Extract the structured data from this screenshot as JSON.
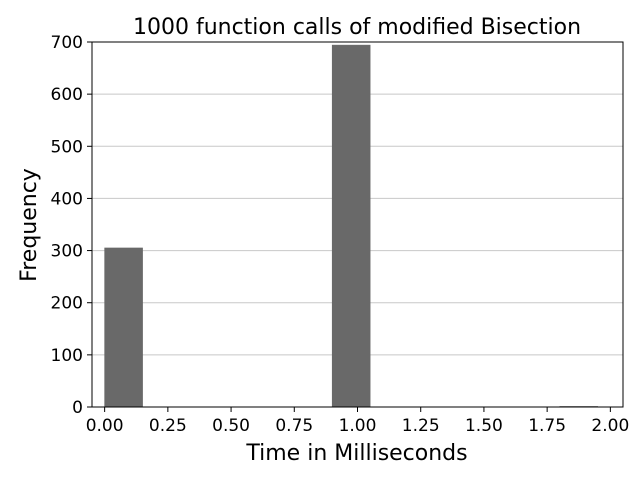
{
  "chart_data": {
    "type": "bar",
    "title": "1000 function calls of modified Bisection",
    "xlabel": "Time in Milliseconds",
    "ylabel": "Frequency",
    "xlim": [
      -0.05,
      2.05
    ],
    "ylim": [
      0,
      700
    ],
    "xticks": [
      "0.00",
      "0.25",
      "0.50",
      "0.75",
      "1.00",
      "1.25",
      "1.50",
      "1.75",
      "2.00"
    ],
    "xtick_values": [
      0.0,
      0.25,
      0.5,
      0.75,
      1.0,
      1.25,
      1.5,
      1.75,
      2.0
    ],
    "yticks": [
      "0",
      "100",
      "200",
      "300",
      "400",
      "500",
      "600",
      "700"
    ],
    "ytick_values": [
      0,
      100,
      200,
      300,
      400,
      500,
      600,
      700
    ],
    "grid": "y",
    "bins": [
      {
        "start": 0.0,
        "end": 0.15,
        "value": 305
      },
      {
        "start": 0.15,
        "end": 0.3,
        "value": 0
      },
      {
        "start": 0.3,
        "end": 0.45,
        "value": 0
      },
      {
        "start": 0.45,
        "end": 0.6,
        "value": 0
      },
      {
        "start": 0.6,
        "end": 0.75,
        "value": 0
      },
      {
        "start": 0.9,
        "end": 1.05,
        "value": 694
      },
      {
        "start": 1.05,
        "end": 1.2,
        "value": 0
      },
      {
        "start": 1.2,
        "end": 1.35,
        "value": 0
      },
      {
        "start": 1.35,
        "end": 1.5,
        "value": 0
      },
      {
        "start": 1.5,
        "end": 1.65,
        "value": 0
      },
      {
        "start": 1.65,
        "end": 1.8,
        "value": 0
      },
      {
        "start": 1.8,
        "end": 1.95,
        "value": 1
      }
    ],
    "colors": {
      "bar": "#696969",
      "grid": "#c8c8c8",
      "axis": "#000000"
    }
  }
}
